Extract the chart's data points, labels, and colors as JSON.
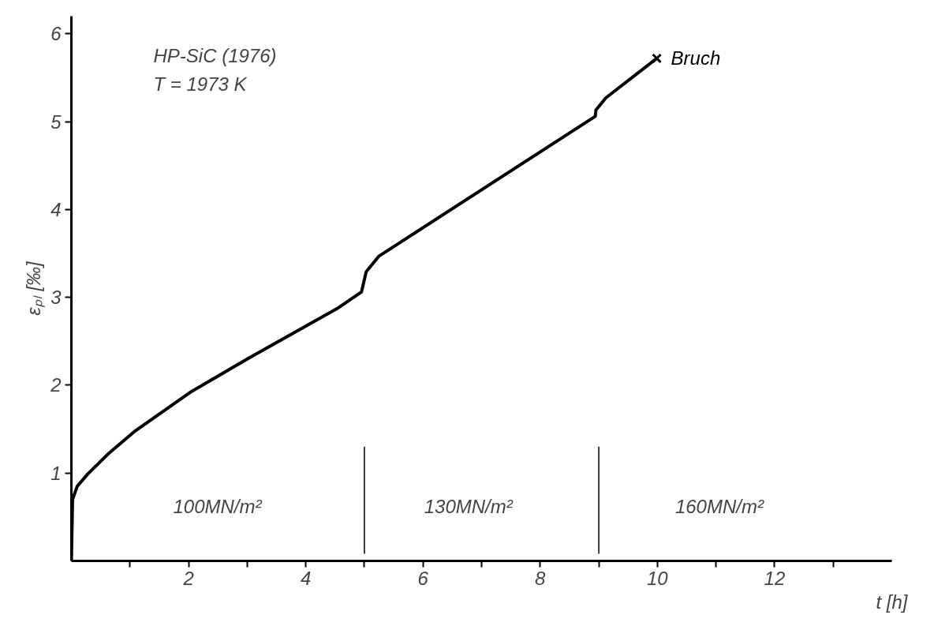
{
  "chart_data": {
    "type": "line",
    "xlabel": "t [h]",
    "ylabel": "εₚₗ [‰]",
    "xlim": [
      0,
      14
    ],
    "ylim": [
      0,
      6.2
    ],
    "xticks": [
      {
        "value": 1,
        "label": null
      },
      2,
      {
        "value": 3,
        "label": null
      },
      4,
      {
        "value": 5,
        "label": null
      },
      6,
      {
        "value": 7,
        "label": null
      },
      8,
      {
        "value": 9,
        "label": null
      },
      10,
      {
        "value": 11,
        "label": null
      },
      12,
      {
        "value": 13,
        "label": null
      }
    ],
    "yticks": [
      1,
      2,
      3,
      4,
      5,
      6
    ],
    "grid": false,
    "line_style": "solid",
    "series": [
      {
        "color": "#000000",
        "marker": "none",
        "x": [
          0,
          0.02,
          0.1,
          0.28,
          0.63,
          1.07,
          2.03,
          3.03,
          4.53,
          4.95,
          5.03,
          5.25,
          8.94,
          8.95,
          9.12,
          9.99
        ],
        "values": [
          0,
          0.7,
          0.85,
          0.99,
          1.22,
          1.47,
          1.92,
          2.31,
          2.87,
          3.06,
          3.29,
          3.47,
          5.06,
          5.13,
          5.27,
          5.72
        ]
      },
      {
        "type": "scatter",
        "name": "Bruch",
        "color": "#000000",
        "marker": "cross",
        "x": [
          9.99
        ],
        "values": [
          5.72
        ]
      }
    ],
    "ref_lines": [
      {
        "axis": "x",
        "value": 5,
        "color": "#000000"
      },
      {
        "axis": "x",
        "value": 9,
        "color": "#000000"
      }
    ],
    "annotations": [
      "HP-SiC (1976)",
      "T = 1973 K",
      "100MN/m²",
      "130MN/m²",
      "160MN/m²"
    ]
  }
}
